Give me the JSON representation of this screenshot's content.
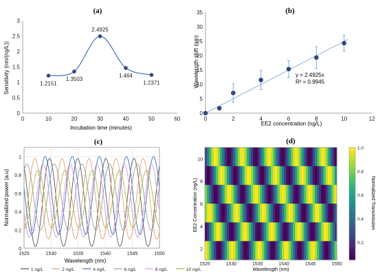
{
  "colors": {
    "axis": "#888888",
    "grid": "#dcdcdc",
    "marker": "#2f4a7d",
    "curve": "#3f6ec2",
    "fit_line": "#8fb3d9",
    "error_bar": "#6fa8d6",
    "text": "#222222"
  },
  "chart_data": [
    {
      "type": "scatter",
      "panel": "(a)",
      "title": "",
      "xlabel": "Incubation time (minutes)",
      "ylabel": "Sensitivity (nm/(ng/L))",
      "xlim": [
        0,
        60
      ],
      "ylim": [
        0,
        3
      ],
      "xticks": [
        "0",
        "10",
        "20",
        "30",
        "40",
        "50",
        "60"
      ],
      "yticks": [
        "0",
        "0.5",
        "1",
        "1.5",
        "2",
        "2.5",
        "3"
      ],
      "smooth_line": true,
      "grid": false,
      "x": [
        10,
        20,
        30,
        40,
        50
      ],
      "y": [
        1.2151,
        1.3503,
        2.4925,
        1.464,
        1.2371
      ],
      "data_labels": [
        "1.2151",
        "1.3503",
        "2.4925",
        "1.464",
        "1.2371"
      ]
    },
    {
      "type": "scatter",
      "panel": "(b)",
      "title": "",
      "xlabel": "EE2 concentration (ng/L)",
      "ylabel": "Wavelength shift (nm)",
      "xlim": [
        0,
        12
      ],
      "ylim": [
        0,
        35
      ],
      "xticks": [
        "0",
        "2",
        "4",
        "6",
        "8",
        "10",
        "12"
      ],
      "yticks": [
        "0",
        "5",
        "10",
        "15",
        "20",
        "25",
        "30",
        "35"
      ],
      "grid": false,
      "x": [
        0,
        1,
        2,
        4,
        6,
        8,
        10
      ],
      "y": [
        0,
        1.7,
        7.0,
        11.5,
        15.3,
        19.3,
        24.3
      ],
      "error": [
        0,
        0.6,
        3.2,
        3.3,
        2.9,
        3.8,
        2.8
      ],
      "trendline": {
        "slope": 2.4925,
        "intercept": 0
      },
      "annotation": [
        "y = 2.4925x",
        "R² = 0.9945"
      ]
    },
    {
      "type": "line",
      "panel": "(c)",
      "title": "",
      "xlabel": "Wavelength (nm)",
      "ylabel": "Normalized power (a.u)",
      "xlim": [
        1525,
        1550
      ],
      "ylim": [
        0,
        1.1
      ],
      "xticks": [
        "1525",
        "1530",
        "1535",
        "1540",
        "1545",
        "1550"
      ],
      "yticks": [
        "0",
        "0.2",
        "0.4",
        "0.6",
        "0.8",
        "1"
      ],
      "grid": true,
      "legend_position": "bottom",
      "series": [
        {
          "name": "1 ng/L",
          "color": "#555555",
          "period": 5.2,
          "phase": 1540.1,
          "min": 0.02,
          "max": 0.98
        },
        {
          "name": "2 ng/L",
          "color": "#e6a06a",
          "period": 5.0,
          "phase": 1542.0,
          "min": 0.1,
          "max": 0.98
        },
        {
          "name": "4 ng/L",
          "color": "#3a6ec0",
          "period": 5.0,
          "phase": 1543.9,
          "min": 0.15,
          "max": 1.0
        },
        {
          "name": "6 ng/L",
          "color": "#9c9c9c",
          "period": 5.1,
          "phase": 1545.9,
          "min": 0.2,
          "max": 0.92
        },
        {
          "name": "8 ng/L",
          "color": "#d59bd8",
          "period": 5.0,
          "phase": 1538.5,
          "min": 0.12,
          "max": 0.92
        },
        {
          "name": "10 ng/L",
          "color": "#b5b73a",
          "period": 5.0,
          "phase": 1547.6,
          "min": 0.22,
          "max": 0.85
        }
      ]
    },
    {
      "type": "heatmap",
      "panel": "(d)",
      "title": "",
      "xlabel": "Wavelength (nm)",
      "ylabel": "EE2 Concentration (ng/L)",
      "colorbar_label": "Normalized Transmission",
      "colormap": "viridis",
      "xlim": [
        1525,
        1550
      ],
      "ylim": [
        1,
        11
      ],
      "xticks": [
        "1525",
        "1530",
        "1535",
        "1540",
        "1545",
        "1550"
      ],
      "yticks": [
        "2",
        "4",
        "6",
        "8",
        "10"
      ],
      "colorbar_ticks": [
        "0.2",
        "0.4",
        "0.6",
        "0.8",
        "1.0"
      ],
      "rows": [
        {
          "concentration": 10,
          "phase": 1527.0
        },
        {
          "concentration": 8,
          "phase": 1528.2
        },
        {
          "concentration": 6,
          "phase": 1529.6
        },
        {
          "concentration": 4,
          "phase": 1531.0
        },
        {
          "concentration": 2,
          "phase": 1532.6
        },
        {
          "concentration": 1,
          "phase": 1530.2
        }
      ],
      "period": 5.1
    }
  ]
}
